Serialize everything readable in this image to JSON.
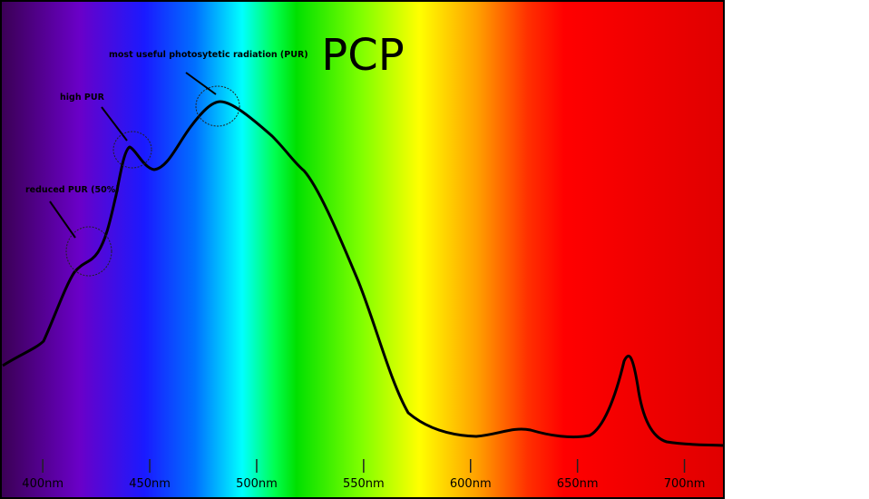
{
  "chart_data": {
    "type": "spectrum",
    "title": "PCP",
    "xlim": [
      380,
      718
    ],
    "xticks": [
      {
        "value": 400,
        "label": "400nm"
      },
      {
        "value": 450,
        "label": "450nm"
      },
      {
        "value": 500,
        "label": "500nm"
      },
      {
        "value": 550,
        "label": "550nm"
      },
      {
        "value": 600,
        "label": "600nm"
      },
      {
        "value": 650,
        "label": "650nm"
      },
      {
        "value": 700,
        "label": "700nm"
      }
    ],
    "annotations": [
      "most useful photosytetic radiation (PUR)",
      "high PUR",
      "reduced PUR (50%)"
    ]
  }
}
